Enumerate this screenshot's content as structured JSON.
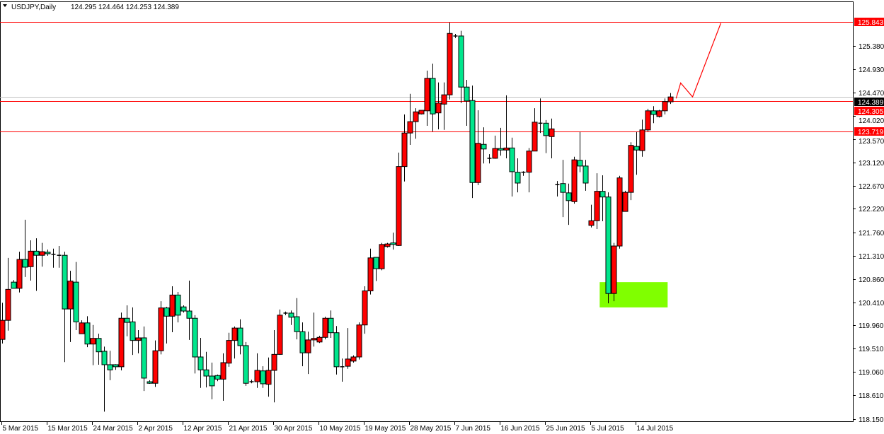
{
  "header": {
    "menu_icon": "triangle-down-icon",
    "symbol_timeframe": "USDJPY,Daily",
    "ohlc": "124.295 124.464 124.253 124.389"
  },
  "colors": {
    "bull": "#FF0000",
    "bear": "#00E68C",
    "candle_outline": "#000000",
    "level_line": "#FF0000",
    "bid_line": "#C0C0C0",
    "zone": "#80FF00",
    "projection": "#FF0000"
  },
  "chart_data": {
    "type": "candlestick",
    "title": "USDJPY,Daily",
    "ylim": [
      118.15,
      125.843
    ],
    "grid": false,
    "y_ticks": [
      "125.380",
      "124.930",
      "124.470",
      "124.020",
      "123.570",
      "123.120",
      "122.670",
      "122.220",
      "121.760",
      "121.310",
      "120.860",
      "120.410",
      "119.960",
      "119.510",
      "119.060",
      "118.610",
      "118.150"
    ],
    "x_tick_labels": [
      {
        "bar": 1,
        "label": "5 Mar 2015"
      },
      {
        "bar": 9,
        "label": "15 Mar 2015"
      },
      {
        "bar": 17,
        "label": "24 Mar 2015"
      },
      {
        "bar": 25,
        "label": "2 Apr 2015"
      },
      {
        "bar": 33,
        "label": "12 Apr 2015"
      },
      {
        "bar": 41,
        "label": "21 Apr 2015"
      },
      {
        "bar": 49,
        "label": "30 Apr 2015"
      },
      {
        "bar": 57,
        "label": "10 May 2015"
      },
      {
        "bar": 65,
        "label": "19 May 2015"
      },
      {
        "bar": 73,
        "label": "28 May 2015"
      },
      {
        "bar": 81,
        "label": "7 Jun 2015"
      },
      {
        "bar": 89,
        "label": "16 Jun 2015"
      },
      {
        "bar": 97,
        "label": "25 Jun 2015"
      },
      {
        "bar": 105,
        "label": "5 Jul 2015"
      },
      {
        "bar": 113,
        "label": "14 Jul 2015"
      }
    ],
    "levels": [
      {
        "price": 125.843,
        "label": "125.843",
        "style": "red"
      },
      {
        "price": 124.305,
        "label": "124.305",
        "style": "red"
      },
      {
        "price": 123.719,
        "label": "123.719",
        "style": "red"
      },
      {
        "price": 124.389,
        "label": "124.389",
        "style": "bid"
      }
    ],
    "zone": {
      "bar_from": 106.5,
      "bar_to": 118.5,
      "price_low": 120.31,
      "price_high": 120.8
    },
    "projection_line": [
      {
        "bar": 120.0,
        "price": 124.36
      },
      {
        "bar": 120.8,
        "price": 124.66
      },
      {
        "bar": 122.9,
        "price": 124.39
      },
      {
        "bar": 127.9,
        "price": 125.82
      }
    ],
    "ohlc": [
      [
        119.69,
        120.4,
        119.61,
        120.06
      ],
      [
        120.06,
        121.27,
        119.86,
        120.66
      ],
      [
        120.8,
        120.84,
        120.68,
        120.68
      ],
      [
        120.68,
        121.39,
        120.6,
        121.24
      ],
      [
        121.24,
        122.01,
        120.9,
        121.09
      ],
      [
        121.1,
        121.61,
        120.83,
        121.4
      ],
      [
        121.4,
        121.65,
        120.63,
        121.32
      ],
      [
        121.32,
        121.56,
        121.1,
        121.39
      ],
      [
        121.38,
        121.43,
        121.31,
        121.35
      ],
      [
        121.34,
        121.45,
        121.08,
        121.34
      ],
      [
        121.32,
        121.5,
        121.08,
        121.32
      ],
      [
        121.32,
        121.39,
        119.25,
        120.28
      ],
      [
        120.28,
        121.02,
        119.64,
        120.82
      ],
      [
        120.8,
        121.19,
        119.87,
        120.03
      ],
      [
        119.8,
        120.06,
        119.8,
        120.01
      ],
      [
        120.01,
        120.14,
        119.54,
        119.6
      ],
      [
        119.6,
        119.97,
        119.19,
        119.71
      ],
      [
        119.71,
        119.8,
        119.2,
        119.45
      ],
      [
        119.46,
        119.55,
        118.29,
        119.2
      ],
      [
        119.2,
        119.47,
        118.9,
        119.1
      ],
      [
        119.2,
        119.21,
        119.1,
        119.16
      ],
      [
        119.16,
        120.21,
        119.09,
        120.1
      ],
      [
        120.1,
        120.35,
        119.75,
        120.02
      ],
      [
        120.03,
        120.31,
        119.39,
        119.67
      ],
      [
        119.67,
        119.87,
        119.42,
        119.72
      ],
      [
        119.72,
        119.94,
        118.69,
        118.94
      ],
      [
        118.87,
        118.9,
        118.83,
        118.84
      ],
      [
        118.84,
        119.67,
        118.77,
        119.47
      ],
      [
        119.47,
        120.43,
        119.4,
        120.3
      ],
      [
        120.3,
        120.32,
        119.61,
        120.14
      ],
      [
        120.14,
        120.72,
        119.83,
        120.55
      ],
      [
        120.55,
        120.61,
        120.02,
        120.16
      ],
      [
        120.32,
        120.35,
        120.21,
        120.24
      ],
      [
        120.24,
        120.83,
        119.68,
        120.1
      ],
      [
        120.1,
        120.16,
        119.03,
        119.35
      ],
      [
        119.35,
        119.72,
        118.75,
        119.1
      ],
      [
        119.1,
        119.45,
        118.76,
        118.98
      ],
      [
        118.98,
        119.24,
        118.53,
        118.79
      ],
      [
        118.99,
        119.01,
        118.88,
        118.92
      ],
      [
        118.92,
        119.42,
        118.5,
        119.24
      ],
      [
        119.23,
        119.82,
        119.16,
        119.67
      ],
      [
        119.67,
        119.94,
        119.32,
        119.91
      ],
      [
        119.91,
        120.08,
        119.4,
        119.57
      ],
      [
        119.57,
        119.64,
        118.79,
        118.84
      ],
      [
        118.87,
        118.91,
        118.84,
        118.87
      ],
      [
        118.87,
        119.42,
        118.75,
        119.09
      ],
      [
        119.08,
        119.17,
        118.75,
        118.83
      ],
      [
        118.82,
        119.34,
        118.58,
        119.09
      ],
      [
        119.09,
        119.87,
        118.47,
        119.4
      ],
      [
        119.4,
        120.27,
        119.39,
        120.16
      ],
      [
        120.2,
        120.23,
        120.16,
        120.2
      ],
      [
        120.2,
        120.25,
        119.97,
        120.12
      ],
      [
        120.13,
        120.49,
        119.69,
        119.84
      ],
      [
        119.84,
        120.02,
        119.17,
        119.43
      ],
      [
        119.43,
        119.84,
        119.02,
        119.68
      ],
      [
        119.68,
        120.21,
        119.55,
        119.71
      ],
      [
        119.64,
        119.76,
        119.62,
        119.73
      ],
      [
        119.73,
        120.13,
        119.69,
        120.1
      ],
      [
        120.1,
        120.25,
        119.72,
        119.82
      ],
      [
        119.82,
        119.95,
        119.01,
        119.16
      ],
      [
        119.16,
        119.32,
        118.87,
        119.16
      ],
      [
        119.17,
        119.91,
        119.12,
        119.31
      ],
      [
        119.27,
        119.38,
        119.24,
        119.35
      ],
      [
        119.35,
        120.02,
        119.3,
        119.97
      ],
      [
        119.97,
        120.72,
        119.8,
        120.63
      ],
      [
        120.63,
        121.45,
        120.56,
        121.27
      ],
      [
        121.28,
        121.28,
        120.82,
        121.06
      ],
      [
        121.06,
        121.56,
        121.03,
        121.53
      ],
      [
        121.49,
        121.56,
        121.47,
        121.54
      ],
      [
        121.56,
        121.76,
        121.43,
        121.53
      ],
      [
        121.51,
        123.31,
        121.5,
        123.04
      ],
      [
        123.04,
        124.05,
        122.75,
        123.69
      ],
      [
        123.69,
        124.45,
        123.46,
        123.91
      ],
      [
        123.91,
        124.17,
        123.58,
        124.1
      ],
      [
        124.06,
        124.13,
        124.05,
        124.13
      ],
      [
        124.12,
        124.9,
        123.83,
        124.75
      ],
      [
        124.75,
        125.035,
        123.72,
        124.06
      ],
      [
        124.08,
        124.67,
        123.76,
        124.27
      ],
      [
        124.25,
        124.67,
        123.75,
        124.43
      ],
      [
        124.43,
        125.83,
        124.34,
        125.62
      ],
      [
        125.57,
        125.61,
        125.53,
        125.57
      ],
      [
        125.57,
        125.67,
        124.27,
        124.58
      ],
      [
        124.58,
        124.72,
        123.83,
        124.31
      ],
      [
        124.32,
        124.61,
        122.43,
        122.73
      ],
      [
        122.73,
        124.13,
        122.68,
        123.49
      ],
      [
        123.47,
        123.8,
        123.1,
        123.38
      ],
      [
        123.2,
        123.28,
        123.1,
        123.2
      ],
      [
        123.2,
        123.64,
        123.19,
        123.39
      ],
      [
        123.39,
        123.79,
        123.25,
        123.36
      ],
      [
        123.36,
        124.42,
        123.2,
        123.4
      ],
      [
        123.4,
        123.6,
        122.46,
        122.94
      ],
      [
        122.93,
        123.2,
        122.54,
        122.72
      ],
      [
        122.93,
        122.95,
        122.86,
        122.93
      ],
      [
        122.93,
        123.4,
        122.54,
        123.34
      ],
      [
        123.34,
        124.17,
        123.34,
        123.9
      ],
      [
        123.88,
        124.36,
        123.69,
        123.88
      ],
      [
        123.88,
        123.94,
        123.3,
        123.64
      ],
      [
        123.62,
        123.97,
        123.2,
        123.77
      ],
      [
        122.69,
        122.76,
        122.46,
        122.69
      ],
      [
        122.71,
        123.17,
        122.06,
        122.54
      ],
      [
        122.53,
        122.71,
        121.91,
        122.38
      ],
      [
        122.36,
        123.23,
        122.32,
        123.17
      ],
      [
        123.16,
        123.71,
        122.93,
        123.05
      ],
      [
        123.05,
        123.17,
        122.57,
        122.72
      ],
      [
        121.9,
        122.3,
        121.86,
        121.99
      ],
      [
        121.99,
        122.91,
        121.83,
        122.56
      ],
      [
        122.56,
        122.87,
        121.98,
        122.45
      ],
      [
        122.45,
        122.54,
        120.39,
        120.58
      ],
      [
        120.58,
        121.56,
        120.43,
        121.5
      ],
      [
        121.5,
        122.86,
        121.45,
        122.82
      ],
      [
        122.17,
        122.57,
        122.17,
        122.54
      ],
      [
        122.54,
        123.51,
        122.39,
        123.45
      ],
      [
        123.43,
        123.71,
        122.88,
        123.36
      ],
      [
        123.35,
        123.95,
        123.23,
        123.75
      ],
      [
        123.75,
        124.16,
        123.72,
        124.12
      ],
      [
        124.12,
        124.21,
        123.88,
        124.05
      ],
      [
        124.01,
        124.14,
        123.99,
        124.12
      ],
      [
        124.12,
        124.36,
        124.05,
        124.3
      ],
      [
        124.295,
        124.464,
        124.253,
        124.389
      ]
    ]
  }
}
